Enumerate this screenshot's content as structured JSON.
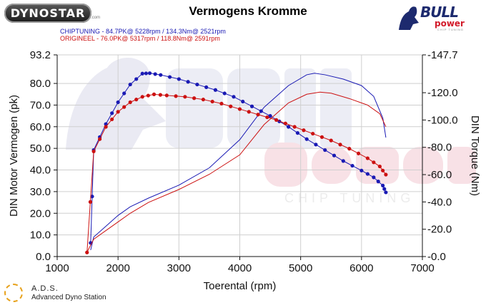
{
  "header": {
    "dynostar_logo": "DYNOSTAR",
    "dynostar_sub": ".com",
    "title": "Vermogens Kromme",
    "legend": [
      {
        "text": "CHIPTUNING - 84.7PK@ 5228rpm / 134.3Nm@ 2521rpm",
        "color": "#1a1ab4"
      },
      {
        "text": "ORIGINEEL - 76.0PK@ 5317rpm / 118.8Nm@ 2591rpm",
        "color": "#cc1111"
      }
    ]
  },
  "brand": {
    "bull": "BULL",
    "power": "power",
    "chip": "CHIP TUNING"
  },
  "footer": {
    "ads_title": "A.D.S.",
    "ads_sub": "Advanced Dyno Station"
  },
  "chart_data": {
    "type": "line",
    "title": "Vermogens Kromme",
    "xlabel": "Toerental (rpm)",
    "ylabel_left": "DIN Motor Vermogen (pk)",
    "ylabel_right": "DIN Torque (Nm)",
    "xlim": [
      1000,
      7000
    ],
    "ylim_left": [
      0,
      93.2
    ],
    "ylim_right": [
      0,
      147.7
    ],
    "x_ticks": [
      "1000",
      "2000",
      "3000",
      "4000",
      "5000",
      "6000",
      "7000"
    ],
    "y_left_ticks": [
      "0.0",
      "10.0",
      "20.0",
      "30.0",
      "40.0",
      "50.0",
      "60.0",
      "70.0",
      "80.0",
      "93.2"
    ],
    "y_right_ticks": [
      "0.0",
      "20.0",
      "40.0",
      "60.0",
      "80.0",
      "100.0",
      "120.0",
      "147.7"
    ],
    "series": [
      {
        "name": "CHIPTUNING",
        "color": "#1a1ab4",
        "torque": [
          [
            1550,
            10
          ],
          [
            1600,
            78
          ],
          [
            1800,
            97
          ],
          [
            2000,
            113
          ],
          [
            2200,
            126
          ],
          [
            2400,
            134
          ],
          [
            2521,
            134.3
          ],
          [
            2700,
            133
          ],
          [
            3000,
            130
          ],
          [
            3300,
            126
          ],
          [
            3600,
            122
          ],
          [
            3900,
            117
          ],
          [
            4200,
            110
          ],
          [
            4500,
            103
          ],
          [
            4800,
            95
          ],
          [
            5100,
            86
          ],
          [
            5400,
            78
          ],
          [
            5700,
            70
          ],
          [
            6000,
            63
          ],
          [
            6200,
            58
          ],
          [
            6350,
            52
          ],
          [
            6400,
            47
          ]
        ],
        "power": [
          [
            1550,
            3
          ],
          [
            1600,
            9
          ],
          [
            1800,
            14
          ],
          [
            2000,
            19
          ],
          [
            2200,
            23
          ],
          [
            2500,
            27
          ],
          [
            3000,
            33
          ],
          [
            3500,
            41
          ],
          [
            4000,
            54
          ],
          [
            4400,
            69
          ],
          [
            4800,
            79
          ],
          [
            5100,
            84
          ],
          [
            5228,
            84.7
          ],
          [
            5400,
            84
          ],
          [
            5700,
            82
          ],
          [
            6000,
            79
          ],
          [
            6200,
            74
          ],
          [
            6350,
            64
          ],
          [
            6400,
            55
          ]
        ]
      },
      {
        "name": "ORIGINEEL",
        "color": "#cc1111",
        "torque": [
          [
            1490,
            3
          ],
          [
            1600,
            77
          ],
          [
            1800,
            95
          ],
          [
            2000,
            106
          ],
          [
            2200,
            113
          ],
          [
            2400,
            117
          ],
          [
            2591,
            118.8
          ],
          [
            2800,
            118
          ],
          [
            3100,
            117
          ],
          [
            3400,
            115
          ],
          [
            3700,
            112
          ],
          [
            4000,
            108
          ],
          [
            4300,
            104
          ],
          [
            4600,
            100
          ],
          [
            4900,
            95
          ],
          [
            5200,
            90
          ],
          [
            5500,
            85
          ],
          [
            5800,
            79
          ],
          [
            6100,
            72
          ],
          [
            6300,
            66
          ],
          [
            6400,
            60
          ]
        ],
        "power": [
          [
            1490,
            2
          ],
          [
            1600,
            8
          ],
          [
            1800,
            12
          ],
          [
            2000,
            16
          ],
          [
            2200,
            20
          ],
          [
            2500,
            25
          ],
          [
            3000,
            31
          ],
          [
            3500,
            38
          ],
          [
            4000,
            47
          ],
          [
            4400,
            61
          ],
          [
            4800,
            71
          ],
          [
            5100,
            75
          ],
          [
            5317,
            76.0
          ],
          [
            5500,
            75.5
          ],
          [
            5800,
            73
          ],
          [
            6100,
            70
          ],
          [
            6300,
            66
          ],
          [
            6400,
            60
          ]
        ]
      }
    ]
  }
}
